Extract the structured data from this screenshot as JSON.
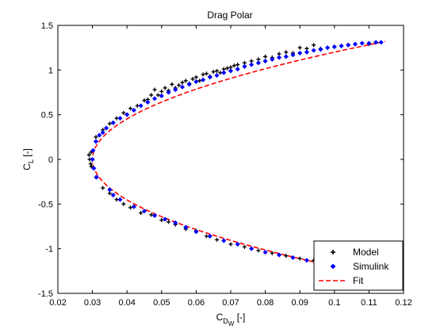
{
  "chart_data": {
    "type": "scatter",
    "title": "Drag Polar",
    "xlabel": {
      "main": "C",
      "sub": "D",
      "subsub": "W",
      "unit": "[-]"
    },
    "ylabel": {
      "main": "C",
      "sub": "L",
      "unit": "[-]"
    },
    "xlim": [
      0.02,
      0.12
    ],
    "ylim": [
      -1.5,
      1.5
    ],
    "x_ticks": [
      0.02,
      0.03,
      0.04,
      0.05,
      0.06,
      0.07,
      0.08,
      0.09,
      0.1,
      0.11,
      0.12
    ],
    "x_tick_labels": [
      "0.02",
      "0.03",
      "0.04",
      "0.05",
      "0.06",
      "0.07",
      "0.08",
      "0.09",
      "0.1",
      "0.11",
      "0.12"
    ],
    "y_ticks": [
      -1.5,
      -1,
      -0.5,
      0,
      0.5,
      1,
      1.5
    ],
    "y_tick_labels": [
      "-1.5",
      "-1",
      "-0.5",
      "0",
      "0.5",
      "1",
      "1.5"
    ],
    "grid": false,
    "legend_position": "bottom-right",
    "series": [
      {
        "name": "Model",
        "marker": "plus",
        "color": "#000000",
        "points": [
          [
            0.0292,
            0.0
          ],
          [
            0.0295,
            -0.05
          ],
          [
            0.029,
            0.05
          ],
          [
            0.0296,
            0.08
          ],
          [
            0.0297,
            -0.08
          ],
          [
            0.031,
            0.25
          ],
          [
            0.033,
            0.33
          ],
          [
            0.035,
            0.4
          ],
          [
            0.037,
            0.46
          ],
          [
            0.039,
            0.52
          ],
          [
            0.041,
            0.57
          ],
          [
            0.043,
            0.6
          ],
          [
            0.045,
            0.66
          ],
          [
            0.046,
            0.67
          ],
          [
            0.047,
            0.72
          ],
          [
            0.048,
            0.78
          ],
          [
            0.049,
            0.72
          ],
          [
            0.05,
            0.76
          ],
          [
            0.051,
            0.8
          ],
          [
            0.052,
            0.77
          ],
          [
            0.053,
            0.84
          ],
          [
            0.054,
            0.8
          ],
          [
            0.055,
            0.83
          ],
          [
            0.056,
            0.86
          ],
          [
            0.057,
            0.88
          ],
          [
            0.058,
            0.85
          ],
          [
            0.059,
            0.9
          ],
          [
            0.06,
            0.92
          ],
          [
            0.061,
            0.88
          ],
          [
            0.062,
            0.95
          ],
          [
            0.063,
            0.96
          ],
          [
            0.064,
            0.93
          ],
          [
            0.065,
            0.98
          ],
          [
            0.066,
            0.99
          ],
          [
            0.067,
            0.97
          ],
          [
            0.068,
            1.01
          ],
          [
            0.069,
            1.02
          ],
          [
            0.07,
            1.03
          ],
          [
            0.071,
            1.05
          ],
          [
            0.072,
            1.06
          ],
          [
            0.074,
            1.08
          ],
          [
            0.076,
            1.1
          ],
          [
            0.078,
            1.12
          ],
          [
            0.08,
            1.15
          ],
          [
            0.082,
            1.14
          ],
          [
            0.084,
            1.18
          ],
          [
            0.086,
            1.2
          ],
          [
            0.088,
            1.19
          ],
          [
            0.09,
            1.25
          ],
          [
            0.092,
            1.24
          ],
          [
            0.094,
            1.28
          ],
          [
            0.096,
            1.24
          ],
          [
            0.098,
            1.25
          ],
          [
            0.1,
            1.26
          ],
          [
            0.102,
            1.27
          ],
          [
            0.104,
            1.28
          ],
          [
            0.106,
            1.29
          ],
          [
            0.108,
            1.3
          ],
          [
            0.11,
            1.29
          ],
          [
            0.031,
            -0.2
          ],
          [
            0.033,
            -0.32
          ],
          [
            0.035,
            -0.38
          ],
          [
            0.037,
            -0.45
          ],
          [
            0.039,
            -0.5
          ],
          [
            0.041,
            -0.54
          ],
          [
            0.044,
            -0.6
          ],
          [
            0.047,
            -0.62
          ],
          [
            0.05,
            -0.68
          ],
          [
            0.052,
            -0.7
          ],
          [
            0.054,
            -0.73
          ],
          [
            0.057,
            -0.78
          ],
          [
            0.06,
            -0.8
          ],
          [
            0.063,
            -0.86
          ],
          [
            0.066,
            -0.9
          ],
          [
            0.07,
            -0.95
          ],
          [
            0.074,
            -0.98
          ],
          [
            0.078,
            -1.02
          ],
          [
            0.082,
            -1.05
          ],
          [
            0.086,
            -1.08
          ],
          [
            0.09,
            -1.11
          ],
          [
            0.094,
            -1.13
          ]
        ]
      },
      {
        "name": "Simulink",
        "marker": "diamond",
        "color": "#0000ff",
        "points": [
          [
            0.03,
            0.0
          ],
          [
            0.0302,
            0.1
          ],
          [
            0.0304,
            -0.1
          ],
          [
            0.031,
            0.2
          ],
          [
            0.0312,
            -0.2
          ],
          [
            0.032,
            0.27
          ],
          [
            0.033,
            0.3
          ],
          [
            0.034,
            0.35
          ],
          [
            0.035,
            -0.34
          ],
          [
            0.036,
            0.41
          ],
          [
            0.038,
            0.46
          ],
          [
            0.04,
            0.5
          ],
          [
            0.042,
            0.55
          ],
          [
            0.044,
            0.6
          ],
          [
            0.046,
            0.64
          ],
          [
            0.048,
            0.68
          ],
          [
            0.05,
            0.71
          ],
          [
            0.052,
            0.75
          ],
          [
            0.054,
            0.78
          ],
          [
            0.056,
            0.81
          ],
          [
            0.058,
            0.84
          ],
          [
            0.06,
            0.87
          ],
          [
            0.062,
            0.89
          ],
          [
            0.064,
            0.92
          ],
          [
            0.066,
            0.94
          ],
          [
            0.068,
            0.97
          ],
          [
            0.07,
            0.99
          ],
          [
            0.072,
            1.01
          ],
          [
            0.074,
            1.04
          ],
          [
            0.076,
            1.06
          ],
          [
            0.078,
            1.08
          ],
          [
            0.08,
            1.1
          ],
          [
            0.082,
            1.12
          ],
          [
            0.084,
            1.14
          ],
          [
            0.086,
            1.15
          ],
          [
            0.088,
            1.17
          ],
          [
            0.09,
            1.19
          ],
          [
            0.092,
            1.2
          ],
          [
            0.094,
            1.22
          ],
          [
            0.096,
            1.23
          ],
          [
            0.098,
            1.25
          ],
          [
            0.1,
            1.26
          ],
          [
            0.102,
            1.27
          ],
          [
            0.104,
            1.28
          ],
          [
            0.106,
            1.29
          ],
          [
            0.108,
            1.3
          ],
          [
            0.11,
            1.3
          ],
          [
            0.112,
            1.31
          ],
          [
            0.1135,
            1.31
          ],
          [
            0.036,
            -0.4
          ],
          [
            0.038,
            -0.45
          ],
          [
            0.042,
            -0.53
          ],
          [
            0.045,
            -0.58
          ],
          [
            0.048,
            -0.63
          ],
          [
            0.051,
            -0.67
          ],
          [
            0.054,
            -0.71
          ],
          [
            0.057,
            -0.76
          ],
          [
            0.06,
            -0.81
          ],
          [
            0.064,
            -0.86
          ],
          [
            0.068,
            -0.91
          ],
          [
            0.072,
            -0.95
          ],
          [
            0.076,
            -1.0
          ],
          [
            0.08,
            -1.04
          ],
          [
            0.084,
            -1.07
          ],
          [
            0.088,
            -1.1
          ],
          [
            0.092,
            -1.13
          ],
          [
            0.095,
            -1.15
          ]
        ]
      },
      {
        "name": "Fit",
        "style": "dashed-line",
        "color": "#ff0000",
        "function": {
          "cd0": 0.03,
          "k": 0.0486,
          "cl_range": [
            -1.2,
            1.32
          ]
        }
      }
    ]
  }
}
